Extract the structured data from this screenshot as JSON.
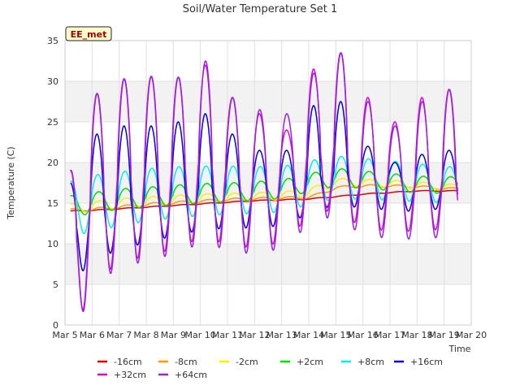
{
  "chart_data": {
    "type": "line",
    "title": "Soil/Water Temperature Set 1",
    "site_badge": "EE_met",
    "xlabel": "Time",
    "ylabel": "Temperature (C)",
    "x_ticks": [
      "Mar 5",
      "Mar 6",
      "Mar 7",
      "Mar 8",
      "Mar 9",
      "Mar 10",
      "Mar 11",
      "Mar 12",
      "Mar 13",
      "Mar 14",
      "Mar 15",
      "Mar 16",
      "Mar 17",
      "Mar 18",
      "Mar 19",
      "Mar 20"
    ],
    "xlim": [
      5,
      20
    ],
    "ylim": [
      0,
      35
    ],
    "y_ticks": [
      0,
      5,
      10,
      15,
      20,
      25,
      30,
      35
    ],
    "grid": true,
    "background_bands": "alternating light gray",
    "legend_placement": "bottom",
    "series": [
      {
        "name": "-16cm",
        "color": "#e00000",
        "x": [
          5.2,
          6,
          7,
          8,
          9,
          10,
          11,
          12,
          13,
          14,
          15,
          16,
          17,
          18,
          19,
          19.5
        ],
        "y": [
          14.0,
          14.1,
          14.3,
          14.5,
          14.7,
          14.9,
          15.1,
          15.3,
          15.4,
          15.5,
          15.8,
          16.1,
          16.3,
          16.5,
          16.5,
          16.5
        ]
      },
      {
        "name": "-8cm",
        "color": "#ff9900",
        "x": [
          5.2,
          6,
          7,
          8,
          9,
          10,
          11,
          12,
          13,
          14,
          14.5,
          15,
          16,
          17,
          18,
          19,
          19.5
        ],
        "y": [
          14.1,
          14.2,
          14.5,
          14.8,
          15.0,
          15.2,
          15.4,
          15.5,
          15.6,
          15.7,
          16.2,
          16.9,
          17.1,
          17.1,
          17.0,
          16.8,
          16.7
        ]
      },
      {
        "name": "-2cm",
        "color": "#ffee00",
        "x": [
          5.2,
          6,
          7,
          8,
          9,
          10,
          11,
          12,
          13,
          14,
          15,
          16,
          17,
          18,
          19,
          19.5
        ],
        "y": [
          14.3,
          14.6,
          15.0,
          15.2,
          15.4,
          15.6,
          15.7,
          15.8,
          15.9,
          16.3,
          17.6,
          17.5,
          17.4,
          17.2,
          17.0,
          16.9
        ]
      },
      {
        "name": "+2cm",
        "color": "#00dd00",
        "x": [
          5.2,
          6,
          7,
          8,
          9,
          10,
          11,
          12,
          13,
          14,
          15,
          16,
          17,
          18,
          19,
          19.5
        ],
        "y": [
          14.6,
          15.0,
          15.5,
          15.7,
          16.0,
          16.2,
          16.3,
          16.5,
          16.7,
          17.5,
          18.2,
          17.9,
          17.6,
          17.3,
          17.2,
          17.3
        ]
      },
      {
        "name": "+8cm",
        "color": "#00eeee",
        "x": [
          5.2,
          6,
          7,
          8,
          9,
          10,
          11,
          12,
          13,
          14,
          15,
          16,
          17,
          18,
          19,
          19.5
        ],
        "y": [
          14.2,
          15.0,
          15.5,
          16.0,
          16.3,
          16.5,
          16.6,
          16.6,
          16.7,
          17.5,
          18.2,
          18.0,
          17.8,
          17.5,
          17.3,
          17.2
        ]
      },
      {
        "name": "+16cm",
        "color": "#0000dd",
        "x": [
          5.2,
          6,
          7,
          8,
          9,
          10,
          11,
          12,
          13,
          14,
          15,
          16,
          17,
          18,
          19,
          19.5
        ],
        "y": [
          11.0,
          14.5,
          15.2,
          16.0,
          16.5,
          17.0,
          17.0,
          16.8,
          16.8,
          18.0,
          19.0,
          18.2,
          17.8,
          17.3,
          17.5,
          17.6
        ]
      },
      {
        "name": "+32cm",
        "color": "#dd00dd",
        "x": [
          5.2,
          6,
          7,
          8,
          9,
          10,
          11,
          12,
          13,
          14,
          15,
          16,
          17,
          18,
          19,
          19.5
        ],
        "y": [
          8.0,
          16.0,
          18.0,
          18.5,
          19.0,
          20.0,
          19.0,
          18.0,
          18.5,
          21.0,
          22.0,
          19.0,
          18.5,
          18.0,
          18.0,
          17.5
        ]
      },
      {
        "name": "+64cm",
        "color": "#9922dd",
        "x": [
          5.2,
          6,
          7,
          8,
          9,
          10,
          11,
          12,
          13,
          14,
          15,
          16,
          17,
          18,
          19,
          19.5
        ],
        "y": [
          8.0,
          15.5,
          17.5,
          18.0,
          18.5,
          19.5,
          18.5,
          17.5,
          18.0,
          20.5,
          21.5,
          18.5,
          18.0,
          17.5,
          17.5,
          18.0
        ]
      }
    ],
    "diurnal_amplitude": {
      "-16cm": [
        0.05,
        0.05
      ],
      "-8cm": [
        0.2,
        0.15
      ],
      "-2cm": [
        0.6,
        0.4
      ],
      "+2cm": [
        1.3,
        1.0
      ],
      "+8cm": [
        3.5,
        2.2
      ],
      "+16cm": [
        6.5,
        3.0
      ],
      "+32cm": [
        11.0,
        6.0
      ],
      "+64cm": [
        11.0,
        6.5
      ]
    },
    "daily_peaks": {
      "+32cm": [
        28.5,
        30.3,
        30.6,
        30.5,
        32.0,
        28.0,
        26.0,
        24.0,
        31.5,
        33.5,
        28.0,
        25.0,
        28.0,
        29.0
      ],
      "+64cm": [
        28.5,
        30.3,
        30.6,
        30.5,
        32.5,
        28.0,
        26.5,
        26.0,
        31.0,
        33.5,
        27.5,
        24.5,
        27.5,
        29.0
      ],
      "+16cm": [
        23.5,
        24.5,
        24.5,
        25.0,
        26.0,
        23.5,
        21.5,
        21.5,
        27.0,
        27.5,
        22.0,
        20.0,
        21.0,
        21.5
      ]
    }
  }
}
